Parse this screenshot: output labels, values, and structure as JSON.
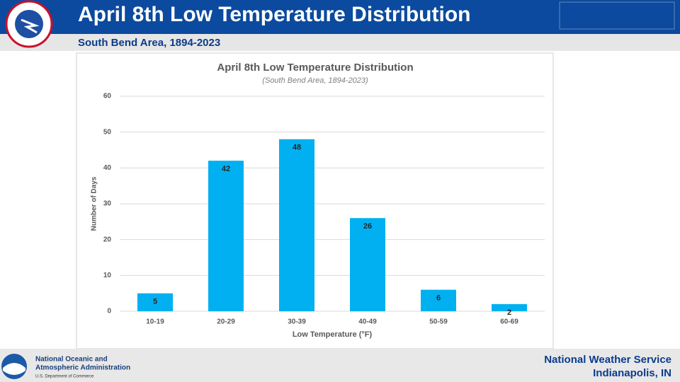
{
  "header": {
    "title": "April 8th Low Temperature Distribution",
    "subtitle": "South Bend Area, 1894-2023"
  },
  "footer": {
    "agency": [
      "National Oceanic and",
      "Atmospheric Administration"
    ],
    "department": "U.S. Department of Commerce",
    "office": [
      "National Weather Service",
      "Indianapolis, IN"
    ]
  },
  "chart_data": {
    "type": "bar",
    "title": "April 8th Low Temperature Distribution",
    "subtitle": "(South Bend Area, 1894-2023)",
    "x_label": "Low Temperature (°F)",
    "y_label": "Number of Days",
    "categories": [
      "10-19",
      "20-29",
      "30-39",
      "40-49",
      "50-59",
      "60-69"
    ],
    "values": [
      5,
      42,
      48,
      26,
      6,
      2
    ],
    "color": "#00b0f0",
    "ylim": [
      0,
      60
    ],
    "yticks": [
      0,
      10,
      20,
      30,
      40,
      50,
      60
    ],
    "grid": true
  }
}
